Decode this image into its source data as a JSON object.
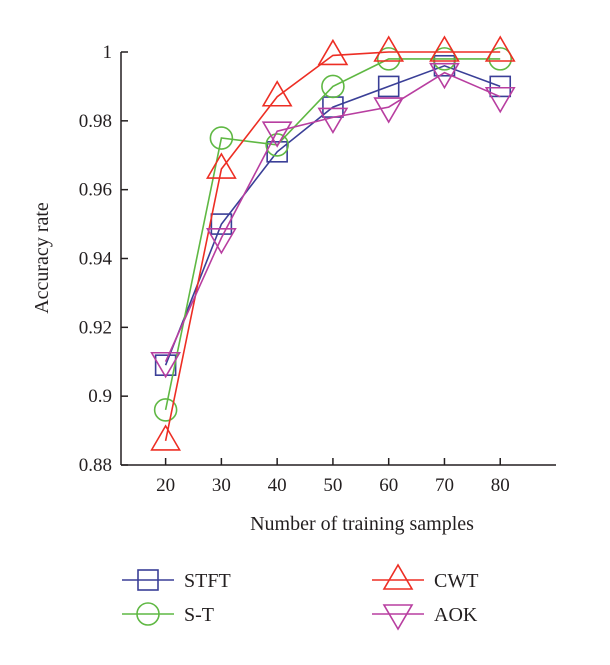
{
  "chart_data": {
    "type": "line",
    "title": "",
    "xlabel": "Number of training samples",
    "ylabel": "Accuracy rate",
    "x": [
      20,
      30,
      40,
      50,
      60,
      70,
      80
    ],
    "xlim": [
      12,
      90
    ],
    "ylim": [
      0.88,
      1.0
    ],
    "xticks": [
      "20",
      "30",
      "40",
      "50",
      "60",
      "70",
      "80"
    ],
    "yticks": [
      "0.88",
      "0.9",
      "0.92",
      "0.94",
      "0.96",
      "0.98",
      "1"
    ],
    "grid": false,
    "legend_position": "bottom",
    "series": [
      {
        "name": "STFT",
        "color": "#3a3f97",
        "marker": "square",
        "values": [
          0.909,
          0.95,
          0.971,
          0.984,
          0.99,
          0.996,
          0.99
        ]
      },
      {
        "name": "S-T",
        "color": "#5fb843",
        "marker": "circle",
        "values": [
          0.896,
          0.975,
          0.973,
          0.99,
          0.998,
          0.998,
          0.998
        ]
      },
      {
        "name": "CWT",
        "color": "#ed2e24",
        "marker": "triangle-up",
        "values": [
          0.887,
          0.966,
          0.987,
          0.999,
          1.0,
          1.0,
          1.0
        ]
      },
      {
        "name": "AOK",
        "color": "#b83ea0",
        "marker": "triangle-down",
        "values": [
          0.91,
          0.946,
          0.977,
          0.981,
          0.984,
          0.994,
          0.987
        ]
      }
    ]
  }
}
